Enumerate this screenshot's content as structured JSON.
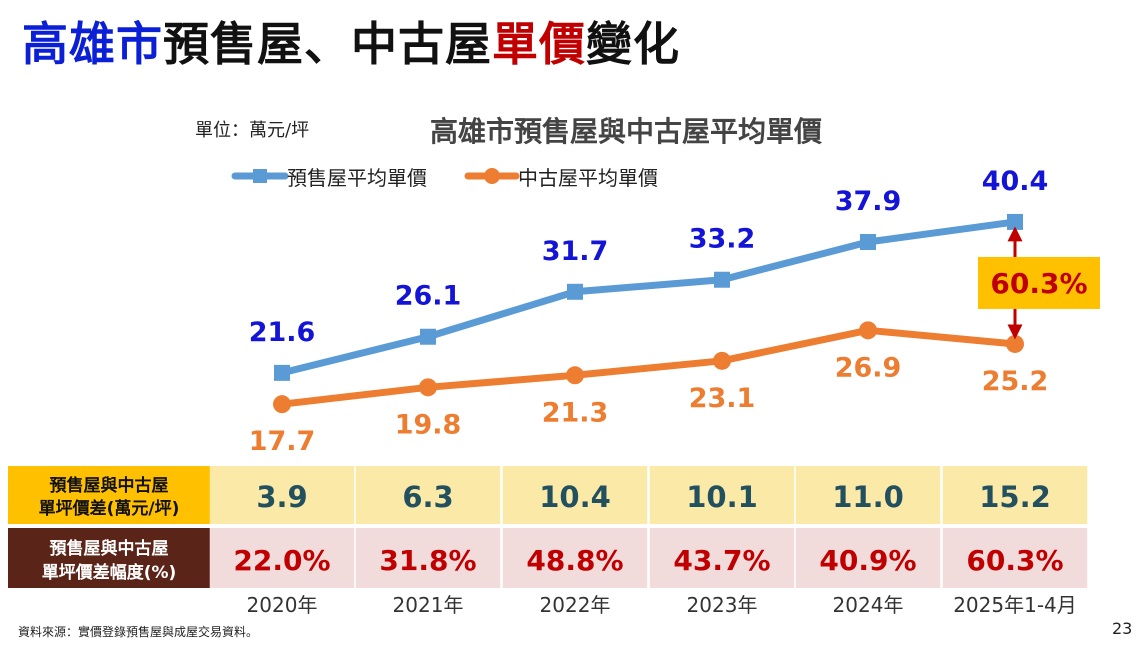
{
  "title": {
    "part1": "高雄市",
    "part2": "預售屋、中古屋",
    "part3": "單價",
    "part4": "變化"
  },
  "unit_label": "單位：萬元/坪",
  "footer": {
    "source": "資料來源：實價登錄預售屋與成屋交易資料。",
    "page_number": "23"
  },
  "colors": {
    "presale": "#5b9bd5",
    "used": "#ed7d31",
    "presale_label": "#1414d6",
    "used_label": "#ed7d31",
    "diff_row_bg": "#fbe9a8",
    "diff_header_bg": "#ffc000",
    "pct_row_bg": "#f2dcdb",
    "pct_header_bg": "#5a2418",
    "pct_text": "#c00000",
    "diff_text": "#22505e"
  },
  "chart_data": {
    "type": "line",
    "title": "高雄市預售屋與中古屋平均單價",
    "categories": [
      "2020年",
      "2021年",
      "2022年",
      "2023年",
      "2024年",
      "2025年1-4月"
    ],
    "series": [
      {
        "name": "預售屋平均單價",
        "values": [
          21.6,
          26.1,
          31.7,
          33.2,
          37.9,
          40.4
        ]
      },
      {
        "name": "中古屋平均單價",
        "values": [
          17.7,
          19.8,
          21.3,
          23.1,
          26.9,
          25.2
        ]
      }
    ],
    "ylim": [
      10,
      45
    ],
    "legend": "top-left",
    "grid": false,
    "annotation": {
      "text": "60.3%",
      "category": "2025年1-4月"
    }
  },
  "table": {
    "diff_header": [
      "預售屋與中古屋",
      "單坪價差(萬元/坪)"
    ],
    "diff_values": [
      "3.9",
      "6.3",
      "10.4",
      "10.1",
      "11.0",
      "15.2"
    ],
    "pct_header": [
      "預售屋與中古屋",
      "單坪價差幅度(%)"
    ],
    "pct_values": [
      "22.0%",
      "31.8%",
      "48.8%",
      "43.7%",
      "40.9%",
      "60.3%"
    ]
  }
}
